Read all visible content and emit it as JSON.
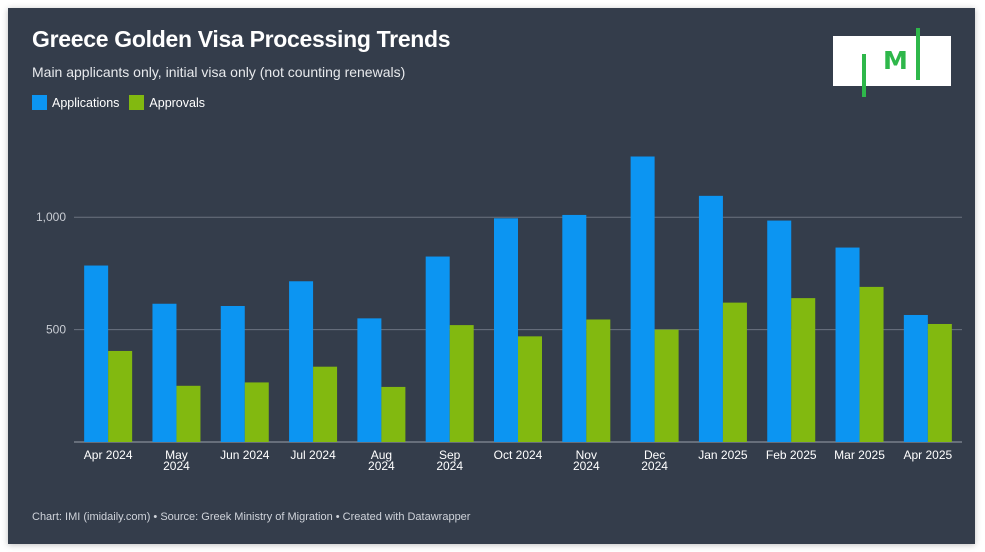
{
  "chart_data": {
    "type": "bar",
    "title": "Greece Golden Visa Processing Trends",
    "subtitle": "Main applicants only, initial visa only (not counting renewals)",
    "categories": [
      "Apr 2024",
      "May 2024",
      "Jun 2024",
      "Jul 2024",
      "Aug 2024",
      "Sep 2024",
      "Oct 2024",
      "Nov 2024",
      "Dec 2024",
      "Jan 2025",
      "Feb 2025",
      "Mar 2025",
      "Apr 2025"
    ],
    "category_labels": [
      [
        "Apr 2024"
      ],
      [
        "May",
        "2024"
      ],
      [
        "Jun 2024"
      ],
      [
        "Jul 2024"
      ],
      [
        "Aug",
        "2024"
      ],
      [
        "Sep",
        "2024"
      ],
      [
        "Oct 2024"
      ],
      [
        "Nov",
        "2024"
      ],
      [
        "Dec",
        "2024"
      ],
      [
        "Jan 2025"
      ],
      [
        "Feb 2025"
      ],
      [
        "Mar 2025"
      ],
      [
        "Apr 2025"
      ]
    ],
    "series": [
      {
        "name": "Applications",
        "color": "#0c95f2",
        "values": [
          785,
          615,
          605,
          715,
          550,
          825,
          995,
          1010,
          1270,
          1095,
          985,
          865,
          565
        ]
      },
      {
        "name": "Approvals",
        "color": "#82b910",
        "values": [
          405,
          250,
          265,
          335,
          245,
          520,
          470,
          545,
          500,
          620,
          640,
          690,
          525
        ]
      }
    ],
    "ylim": [
      0,
      1450
    ],
    "yticks": [
      500,
      1000
    ],
    "ytick_labels": [
      "500",
      "1,000"
    ],
    "grid": true,
    "legend_position": "top-left"
  },
  "logo": {
    "text": "M"
  },
  "footer": "Chart: IMI (imidaily.com) • Source: Greek Ministry of Migration • Created with Datawrapper"
}
